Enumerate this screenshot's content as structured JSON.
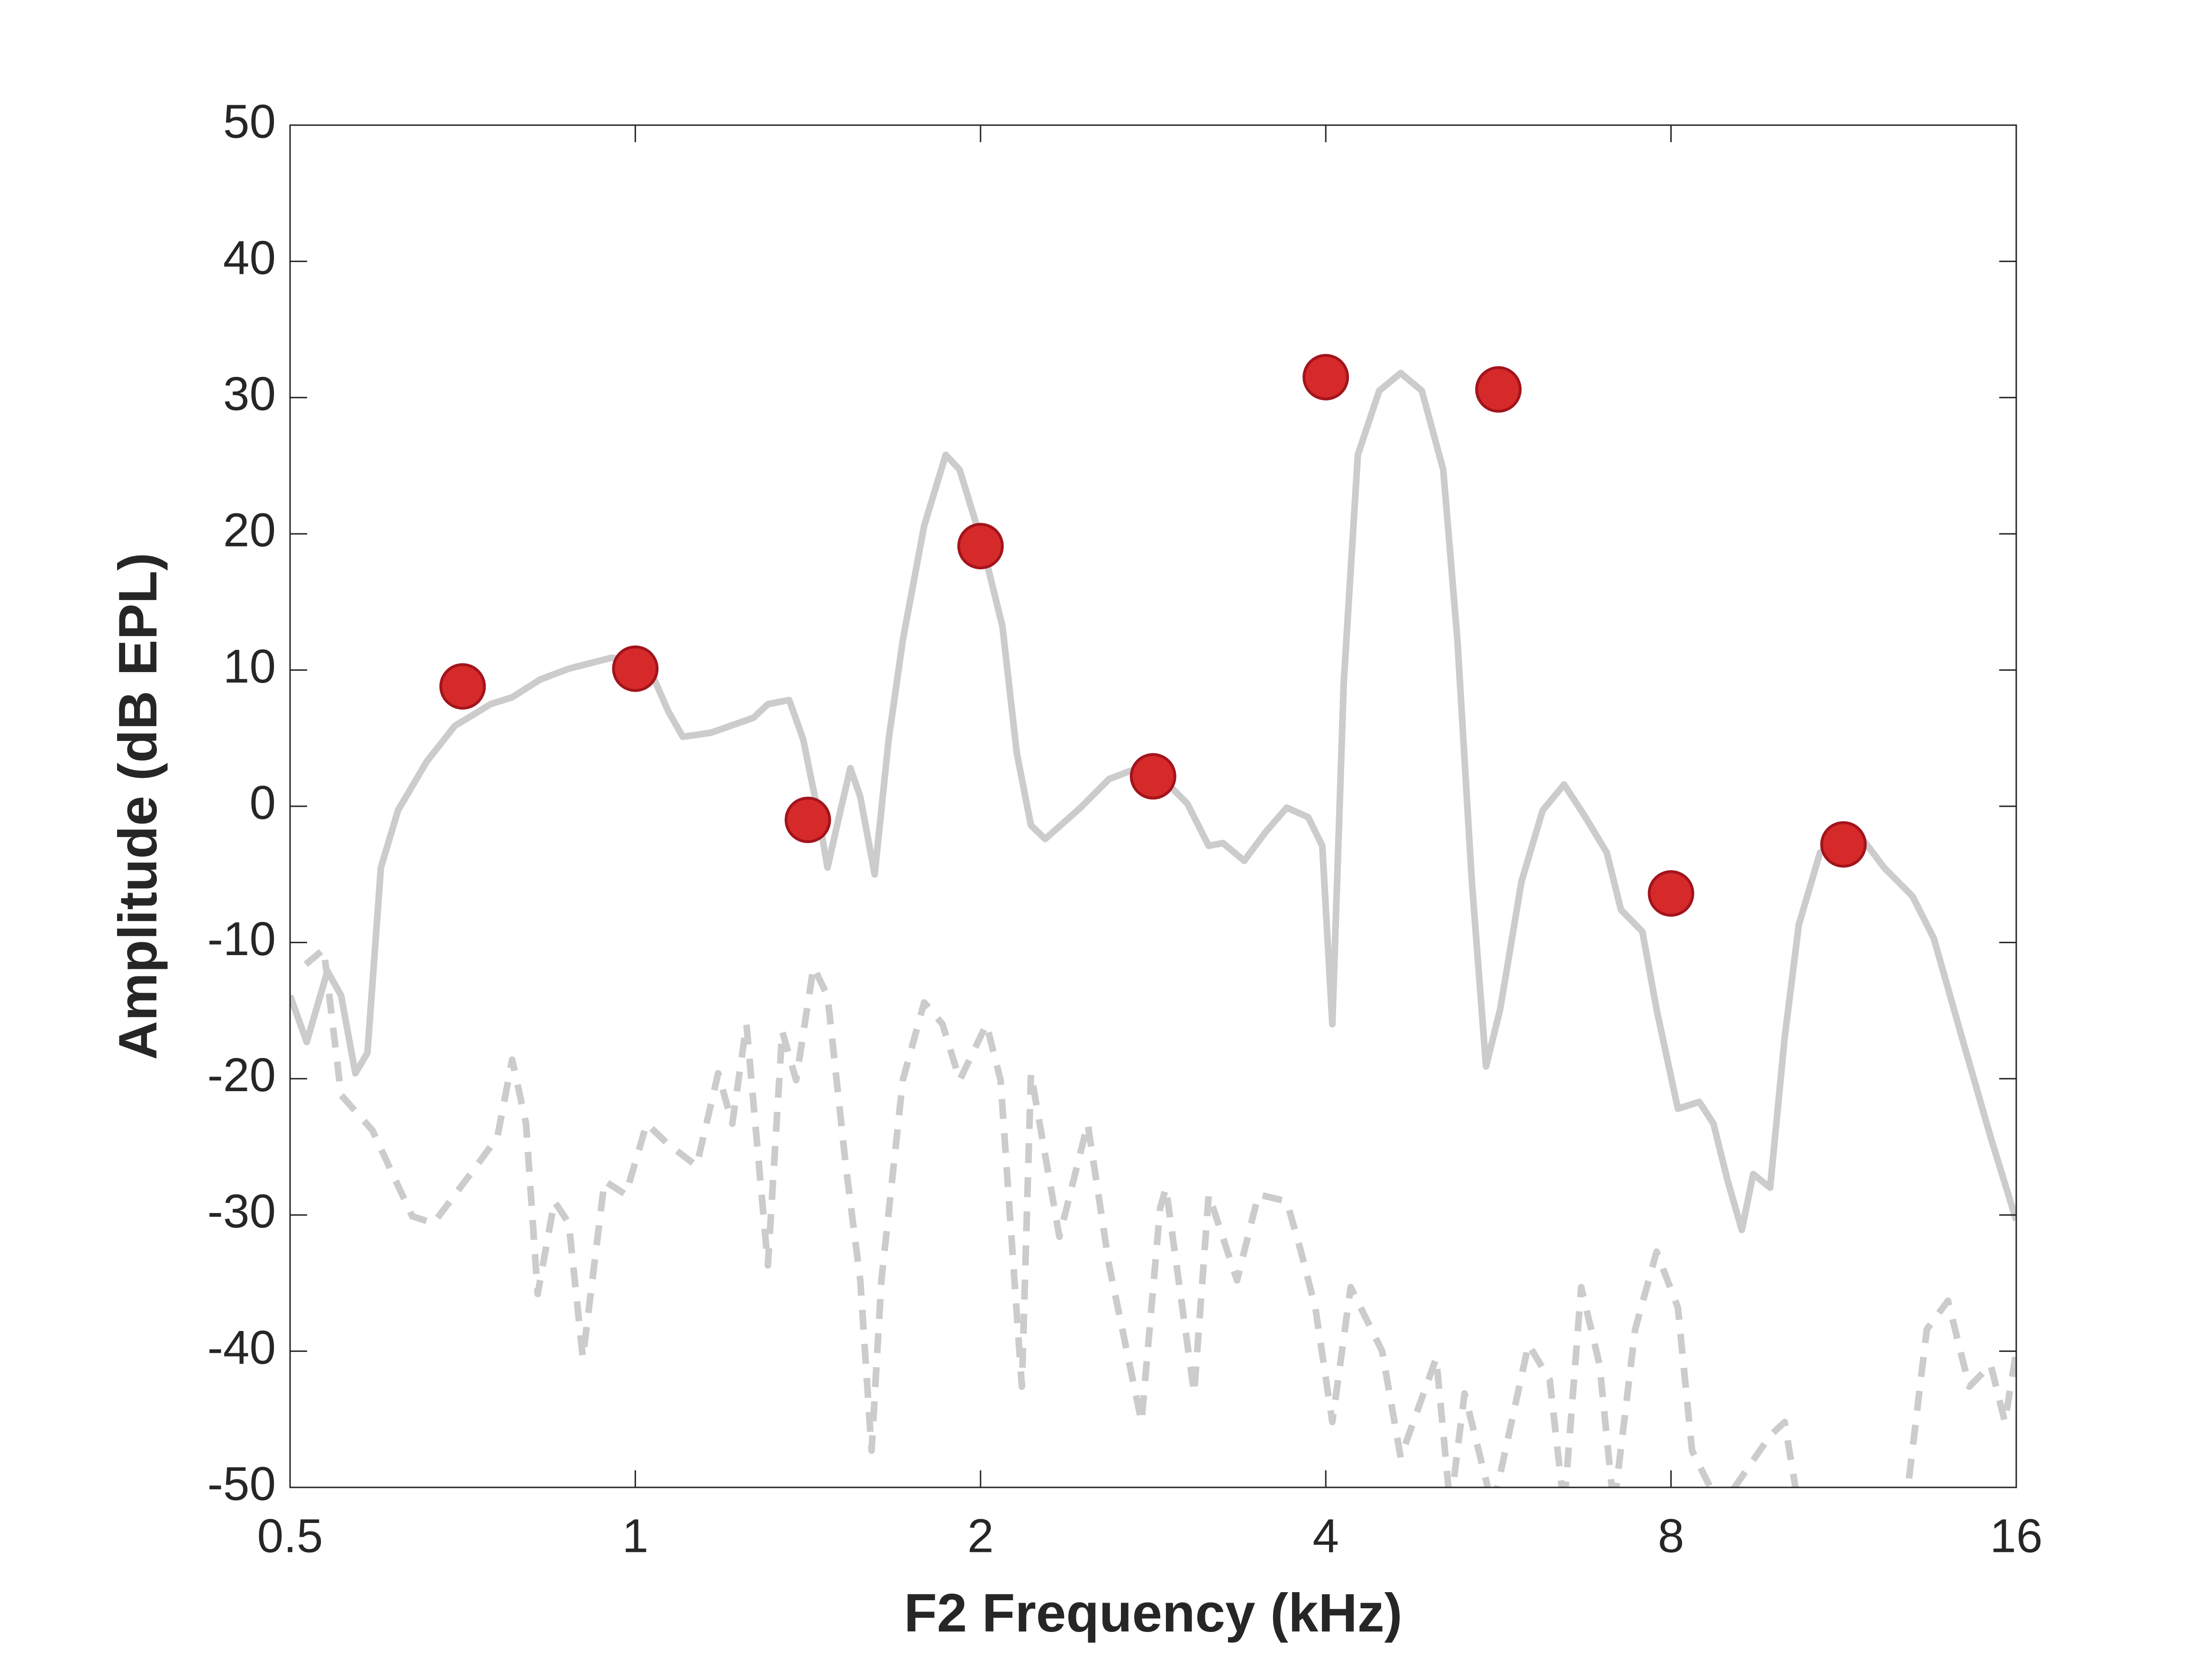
{
  "chart_data": {
    "type": "line",
    "xlabel": "F2 Frequency (kHz)",
    "ylabel": "Amplitude (dB EPL)",
    "xlog": true,
    "xlim": [
      0.5,
      16
    ],
    "xticks": [
      0.5,
      1,
      2,
      4,
      8,
      16
    ],
    "ylim": [
      -50,
      50
    ],
    "yticks": [
      -50,
      -40,
      -30,
      -20,
      -10,
      0,
      10,
      20,
      30,
      40,
      50
    ],
    "series": [
      {
        "type": "line",
        "dash": false,
        "color": "#cccccc",
        "x": [
          0.5,
          0.517,
          0.539,
          0.554,
          0.57,
          0.584,
          0.6,
          0.621,
          0.658,
          0.696,
          0.748,
          0.781,
          0.826,
          0.875,
          0.953,
          1.023,
          1.068,
          1.1,
          1.164,
          1.268,
          1.305,
          1.362,
          1.401,
          1.442,
          1.471,
          1.505,
          1.54,
          1.571,
          1.617,
          1.663,
          1.711,
          1.786,
          1.865,
          1.918,
          2.003,
          2.09,
          2.151,
          2.213,
          2.277,
          2.445,
          2.589,
          2.742,
          2.861,
          3.029,
          3.162,
          3.254,
          3.396,
          3.544,
          3.699,
          3.861,
          3.972,
          4.053,
          4.147,
          4.266,
          4.453,
          4.649,
          4.851,
          5.064,
          5.21,
          5.363,
          5.518,
          5.677,
          5.926,
          6.183,
          6.454,
          6.737,
          7.032,
          7.235,
          7.553,
          7.771,
          8.111,
          8.468,
          8.712,
          8.964,
          9.222,
          9.435,
          9.761,
          10.05,
          10.34,
          10.79,
          11.26,
          11.75,
          12.27,
          12.99,
          13.56,
          14.35,
          15.2,
          16
        ],
        "values": [
          -13.9,
          -17.3,
          -12.1,
          -13.9,
          -19.6,
          -18.1,
          -4.5,
          -0.3,
          3.3,
          5.9,
          7.5,
          8.0,
          9.3,
          10.1,
          10.9,
          10.6,
          7.0,
          5.1,
          5.4,
          6.5,
          7.5,
          7.8,
          4.9,
          -0.3,
          -4.5,
          -0.8,
          2.8,
          0.7,
          -5.0,
          4.9,
          12.2,
          20.6,
          25.8,
          24.7,
          19.5,
          13.2,
          3.9,
          -1.4,
          -2.4,
          -0.1,
          2.0,
          2.8,
          2.3,
          0.2,
          -2.9,
          -2.7,
          -4.0,
          -1.9,
          -0.1,
          -0.8,
          -2.9,
          -16.0,
          9.1,
          25.8,
          30.5,
          31.8,
          30.5,
          24.7,
          12.2,
          -5.5,
          -19.1,
          -14.9,
          -5.5,
          -0.3,
          1.6,
          -0.8,
          -3.4,
          -7.6,
          -9.2,
          -14.9,
          -22.2,
          -21.7,
          -23.3,
          -27.5,
          -31.1,
          -27.0,
          -28.0,
          -17.0,
          -8.7,
          -3.4,
          -2.4,
          -2.4,
          -4.5,
          -6.6,
          -9.7,
          -17.0,
          -24.3,
          -30.4
        ]
      },
      {
        "type": "line",
        "dash": true,
        "color": "#cccccc",
        "x": [
          0.516,
          0.535,
          0.554,
          0.59,
          0.639,
          0.667,
          0.727,
          0.758,
          0.781,
          0.803,
          0.822,
          0.85,
          0.875,
          0.9,
          0.94,
          0.981,
          1.023,
          1.068,
          1.131,
          1.181,
          1.215,
          1.25,
          1.305,
          1.343,
          1.381,
          1.43,
          1.471,
          1.526,
          1.571,
          1.607,
          1.639,
          1.711,
          1.786,
          1.853,
          1.918,
          2.024,
          2.082,
          2.173,
          2.213,
          2.343,
          2.48,
          2.589,
          2.763,
          2.868,
          2.902,
          3.071,
          3.162,
          3.347,
          3.494,
          3.699,
          3.806,
          3.917,
          4.053,
          4.205,
          4.479,
          4.649,
          4.993,
          5.137,
          5.285,
          5.594,
          6.009,
          6.271,
          6.454,
          6.68,
          6.931,
          7.132,
          7.444,
          7.771,
          8.111,
          8.345,
          8.835,
          9.761,
          10.05,
          10.34,
          12.81,
          13.37,
          13.95,
          14.56,
          15.2,
          15.64,
          16
        ],
        "values": [
          -11.6,
          -10.5,
          -21.2,
          -23.8,
          -30.1,
          -30.6,
          -26.4,
          -24.3,
          -18.6,
          -23.3,
          -35.8,
          -29.0,
          -30.6,
          -40.5,
          -27.5,
          -28.5,
          -23.3,
          -24.8,
          -26.4,
          -19.6,
          -23.3,
          -16.0,
          -33.7,
          -16.5,
          -20.1,
          -11.8,
          -13.9,
          -26.4,
          -34.8,
          -47.3,
          -34.8,
          -20.1,
          -14.4,
          -16.0,
          -20.1,
          -16.0,
          -20.1,
          -42.6,
          -19.6,
          -31.6,
          -23.3,
          -33.7,
          -45.2,
          -29.5,
          -28.0,
          -43.1,
          -28.5,
          -34.8,
          -28.5,
          -29.0,
          -32.7,
          -36.8,
          -45.2,
          -35.3,
          -40.0,
          -47.8,
          -40.5,
          -51.5,
          -43.1,
          -51.5,
          -39.5,
          -42.1,
          -51.5,
          -35.3,
          -41.0,
          -51.5,
          -38.4,
          -32.7,
          -36.8,
          -47.3,
          -51.5,
          -46.2,
          -45.2,
          -51.5,
          -51.5,
          -38.4,
          -36.3,
          -42.6,
          -41.0,
          -45.2,
          -40.0
        ]
      },
      {
        "type": "scatter",
        "color": "#d62a2a",
        "edge": "#a3141c",
        "x": [
          0.707,
          1,
          1.414,
          2,
          2.828,
          4,
          5.657,
          8,
          11.31
        ],
        "values": [
          8.8,
          10.1,
          -1,
          19.1,
          2.2,
          31.5,
          30.6,
          -6.4,
          -2.8
        ]
      }
    ]
  }
}
